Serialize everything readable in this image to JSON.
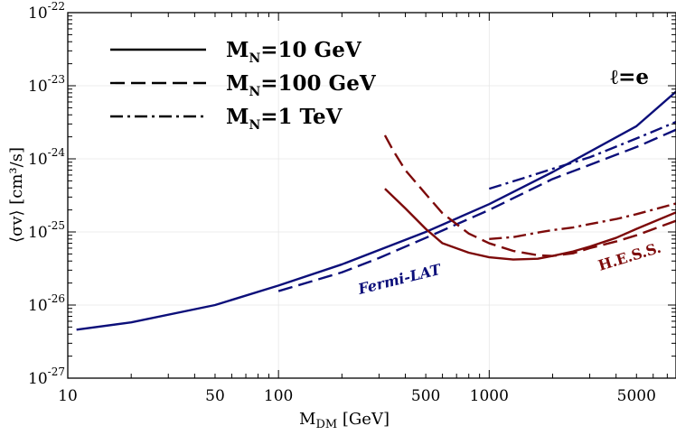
{
  "chart_data": {
    "type": "line",
    "xlabel": "M",
    "xlabel_sub": "DM",
    "xlabel_unit": " [GeV]",
    "ylabel": "⟨σv⟩ [cm³/s]",
    "xscale": "log",
    "yscale": "log",
    "xlim": [
      10,
      7700
    ],
    "ylim": [
      1e-27,
      1e-22
    ],
    "grid": true,
    "legend_placement": "top-left",
    "x_ticks": [
      {
        "value": 10,
        "label": "10"
      },
      {
        "value": 50,
        "label": "50"
      },
      {
        "value": 100,
        "label": "100"
      },
      {
        "value": 500,
        "label": "500"
      },
      {
        "value": 1000,
        "label": "1000"
      },
      {
        "value": 5000,
        "label": "5000"
      }
    ],
    "y_ticks": [
      {
        "value": 1e-27,
        "base": "10",
        "exp": "-27"
      },
      {
        "value": 1e-26,
        "base": "10",
        "exp": "-26"
      },
      {
        "value": 1e-25,
        "base": "10",
        "exp": "-25"
      },
      {
        "value": 1e-24,
        "base": "10",
        "exp": "-24"
      },
      {
        "value": 1e-23,
        "base": "10",
        "exp": "-23"
      },
      {
        "value": 1e-22,
        "base": "10",
        "exp": "-22"
      }
    ],
    "legend": [
      {
        "label_main": "M",
        "label_sub": "N",
        "label_rest": "=10 GeV",
        "style": "solid"
      },
      {
        "label_main": "M",
        "label_sub": "N",
        "label_rest": "=100 GeV",
        "style": "dashed"
      },
      {
        "label_main": "M",
        "label_sub": "N",
        "label_rest": "=1 TeV",
        "style": "dashdot"
      }
    ],
    "annotations": {
      "channel": "ℓ=e",
      "fermi_label": "Fermi-LAT",
      "hess_label": "H.E.S.S."
    },
    "colors": {
      "fermi": "#0c0f7a",
      "hess": "#7d0a0a"
    },
    "series": [
      {
        "instrument": "Fermi-LAT",
        "style": "solid",
        "x": [
          11,
          20,
          50,
          100,
          200,
          500,
          1000,
          2000,
          5000,
          7700
        ],
        "y": [
          4.6e-27,
          5.8e-27,
          1e-26,
          1.85e-26,
          3.6e-26,
          1e-25,
          2.4e-25,
          6.6e-25,
          2.8e-24,
          8.3e-24
        ]
      },
      {
        "instrument": "Fermi-LAT",
        "style": "dashed",
        "x": [
          100,
          200,
          300,
          500,
          1000,
          2000,
          5000,
          7700
        ],
        "y": [
          1.55e-26,
          2.8e-26,
          4.4e-26,
          8.3e-26,
          2e-25,
          5.3e-25,
          1.45e-24,
          2.5e-24
        ]
      },
      {
        "instrument": "Fermi-LAT",
        "style": "dashdot",
        "x": [
          1000,
          1500,
          2000,
          3000,
          5000,
          7700
        ],
        "y": [
          3.9e-25,
          5.6e-25,
          7.3e-25,
          1.05e-24,
          1.9e-24,
          3.2e-24
        ]
      },
      {
        "instrument": "H.E.S.S.",
        "style": "solid",
        "x": [
          320,
          400,
          500,
          600,
          800,
          1000,
          1300,
          1700,
          2000,
          2500,
          3000,
          4000,
          5000,
          7700
        ],
        "y": [
          3.9e-25,
          2.1e-25,
          1.1e-25,
          7e-26,
          5.2e-26,
          4.5e-26,
          4.2e-26,
          4.3e-26,
          4.7e-26,
          5.4e-26,
          6.3e-26,
          8.3e-26,
          1.1e-25,
          1.85e-25
        ]
      },
      {
        "instrument": "H.E.S.S.",
        "style": "dashed",
        "x": [
          320,
          350,
          400,
          500,
          600,
          800,
          1000,
          1300,
          1700,
          2000,
          2500,
          3000,
          4000,
          5000,
          7700
        ],
        "y": [
          2.1e-24,
          1.3e-24,
          7e-25,
          3.3e-25,
          1.8e-25,
          9.5e-26,
          7e-26,
          5.5e-26,
          4.8e-26,
          4.7e-26,
          5.1e-26,
          6e-26,
          7.4e-26,
          9e-26,
          1.42e-25
        ]
      },
      {
        "instrument": "H.E.S.S.",
        "style": "dashdot",
        "x": [
          1000,
          1300,
          1700,
          2000,
          2500,
          3000,
          4000,
          5000,
          7700
        ],
        "y": [
          8e-26,
          8.5e-26,
          9.8e-26,
          1.06e-25,
          1.15e-25,
          1.28e-25,
          1.5e-25,
          1.75e-25,
          2.45e-25
        ]
      }
    ]
  }
}
